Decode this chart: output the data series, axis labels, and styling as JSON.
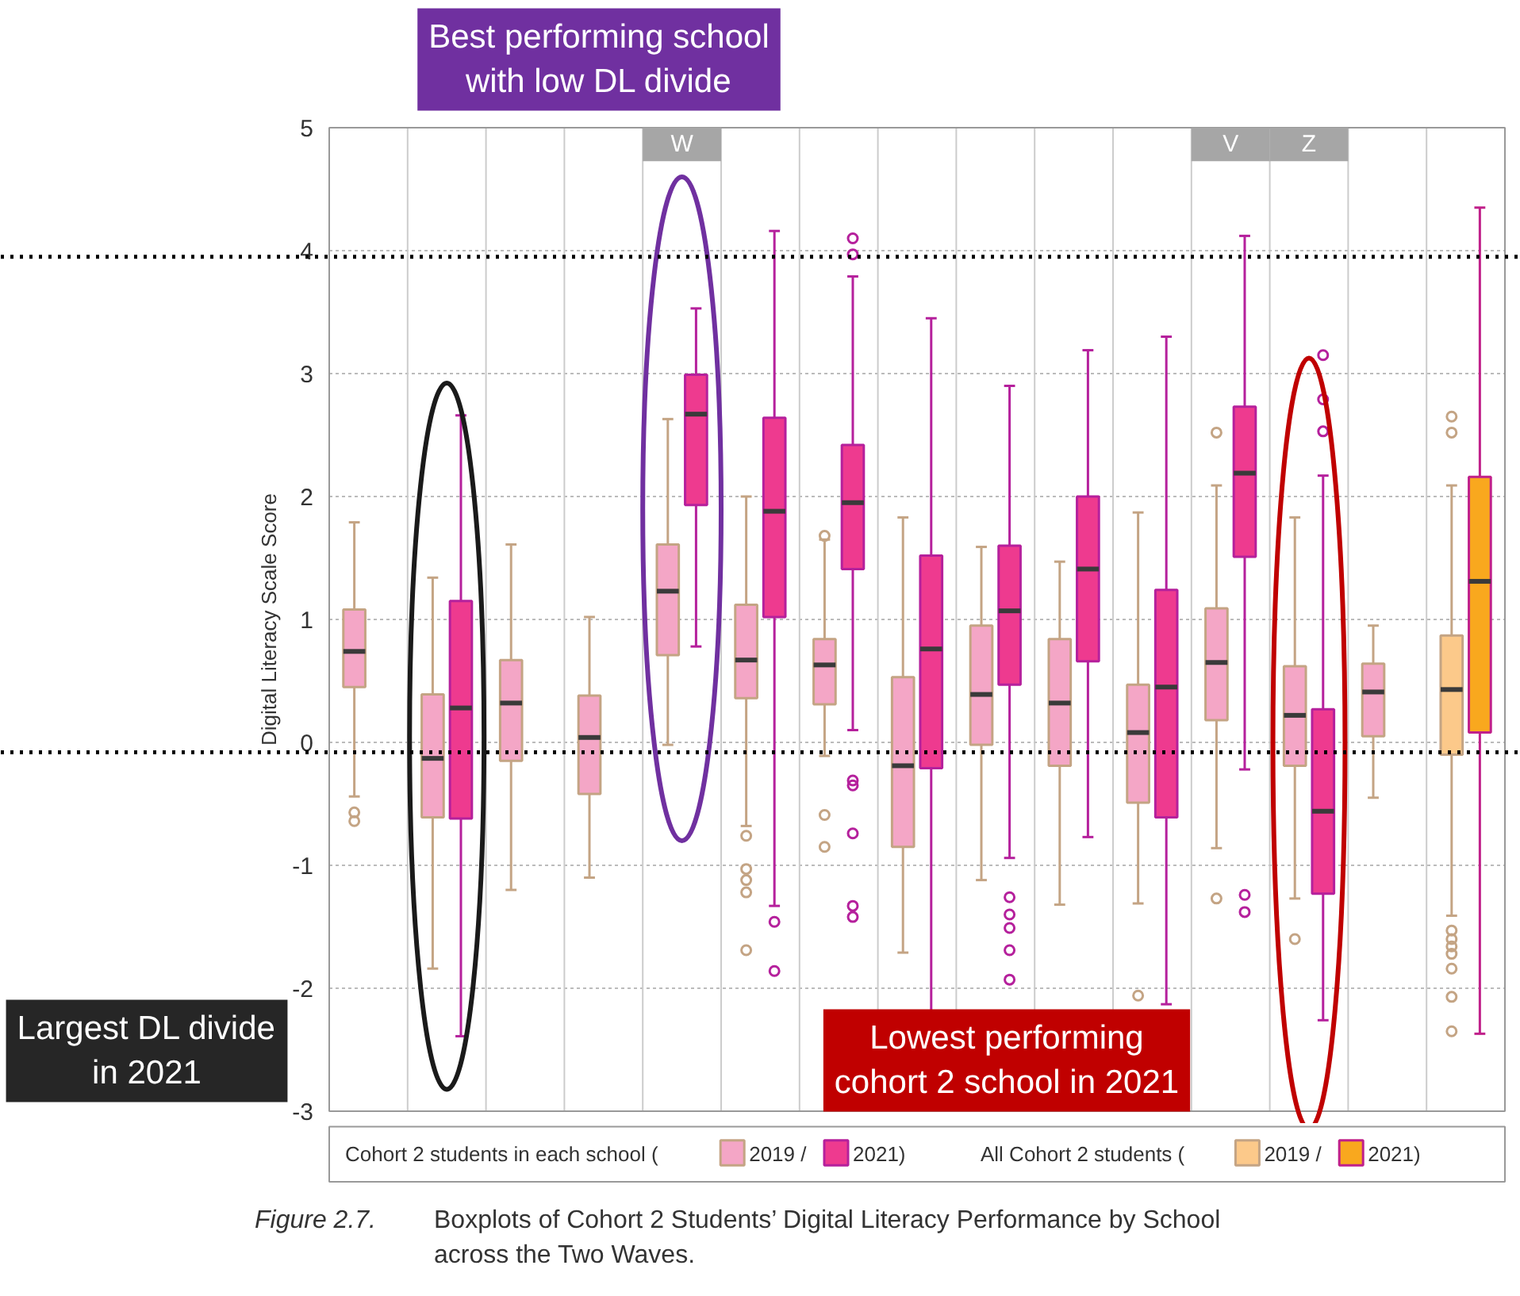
{
  "chart_data": {
    "type": "box",
    "ylabel": "Digital Literacy Scale Score",
    "categories": [
      null,
      null,
      null,
      null,
      "W",
      null,
      null,
      null,
      null,
      null,
      null,
      "V",
      "Z",
      null,
      null
    ],
    "ylim": [
      -3,
      5
    ],
    "yticks": [
      -3,
      -2,
      -1,
      0,
      1,
      2,
      3,
      4,
      5
    ],
    "grid": true,
    "legend": "bottom",
    "series": [
      {
        "name": "2019 /",
        "color": "#f4a6c6",
        "boxes": [
          {
            "low": -0.44,
            "q1": 0.45,
            "median": 0.74,
            "q3": 1.08,
            "high": 1.79,
            "outliers": [
              -0.57,
              -0.64
            ]
          },
          {
            "low": -1.84,
            "q1": -0.61,
            "median": -0.13,
            "q3": 0.39,
            "high": 1.34
          },
          {
            "low": -1.2,
            "q1": -0.15,
            "median": 0.32,
            "q3": 0.67,
            "high": 1.61
          },
          {
            "low": -1.1,
            "q1": -0.42,
            "median": 0.04,
            "q3": 0.38,
            "high": 1.02
          },
          {
            "low": -0.02,
            "q1": 0.71,
            "median": 1.23,
            "q3": 1.61,
            "high": 2.63
          },
          {
            "low": -0.68,
            "q1": 0.36,
            "median": 0.67,
            "q3": 1.12,
            "high": 2.0,
            "outliers": [
              -0.76,
              -1.03,
              -1.12,
              -1.22,
              -1.69
            ]
          },
          {
            "low": -0.11,
            "q1": 0.31,
            "median": 0.63,
            "q3": 0.84,
            "high": 1.65,
            "outliers": [
              1.68,
              -0.59,
              -0.85
            ]
          },
          {
            "low": -1.71,
            "q1": -0.85,
            "median": -0.19,
            "q3": 0.53,
            "high": 1.83
          },
          {
            "low": -1.12,
            "q1": -0.02,
            "median": 0.39,
            "q3": 0.95,
            "high": 1.59
          },
          {
            "low": -1.32,
            "q1": -0.19,
            "median": 0.32,
            "q3": 0.84,
            "high": 1.47
          },
          {
            "low": -1.31,
            "q1": -0.49,
            "median": 0.08,
            "q3": 0.47,
            "high": 1.87,
            "outliers": [
              -2.06
            ]
          },
          {
            "low": -0.86,
            "q1": 0.18,
            "median": 0.65,
            "q3": 1.09,
            "high": 2.09,
            "outliers": [
              2.52,
              -1.27
            ]
          },
          {
            "low": -1.27,
            "q1": -0.19,
            "median": 0.22,
            "q3": 0.62,
            "high": 1.83,
            "outliers": [
              -1.6
            ]
          },
          {
            "low": -0.45,
            "q1": 0.05,
            "median": 0.41,
            "q3": 0.64,
            "high": 0.95
          },
          null
        ]
      },
      {
        "name": "2021)",
        "color": "#ee3a8f",
        "boxes": [
          null,
          {
            "low": -2.39,
            "q1": -0.62,
            "median": 0.28,
            "q3": 1.15,
            "high": 2.66
          },
          null,
          null,
          {
            "low": 0.78,
            "q1": 1.93,
            "median": 2.67,
            "q3": 2.99,
            "high": 3.53
          },
          {
            "low": -1.33,
            "q1": 1.02,
            "median": 1.88,
            "q3": 2.64,
            "high": 4.16,
            "outliers": [
              -1.46,
              -1.86
            ]
          },
          {
            "low": 0.1,
            "q1": 1.41,
            "median": 1.95,
            "q3": 2.42,
            "high": 3.79,
            "outliers": [
              4.1,
              3.97,
              -0.31,
              -0.35,
              -0.74,
              -1.33,
              -1.42
            ]
          },
          {
            "low": -2.6,
            "q1": -0.21,
            "median": 0.76,
            "q3": 1.52,
            "high": 3.45
          },
          {
            "low": -0.94,
            "q1": 0.47,
            "median": 1.07,
            "q3": 1.6,
            "high": 2.9,
            "outliers": [
              -1.26,
              -1.4,
              -1.51,
              -1.69,
              -1.93
            ]
          },
          {
            "low": -0.77,
            "q1": 0.66,
            "median": 1.41,
            "q3": 2.0,
            "high": 3.19
          },
          {
            "low": -2.13,
            "q1": -0.61,
            "median": 0.45,
            "q3": 1.24,
            "high": 3.3
          },
          {
            "low": -0.22,
            "q1": 1.51,
            "median": 2.19,
            "q3": 2.73,
            "high": 4.12,
            "outliers": [
              -1.24,
              -1.38
            ]
          },
          {
            "low": -2.26,
            "q1": -1.23,
            "median": -0.56,
            "q3": 0.27,
            "high": 2.17,
            "outliers": [
              3.15,
              2.79,
              2.53
            ]
          },
          null,
          null
        ]
      },
      {
        "name": "2019 /",
        "color": "#fcc98a",
        "boxes": [
          null,
          null,
          null,
          null,
          null,
          null,
          null,
          null,
          null,
          null,
          null,
          null,
          null,
          null,
          {
            "low": -1.41,
            "q1": -0.1,
            "median": 0.43,
            "q3": 0.87,
            "high": 2.09,
            "outliers": [
              2.65,
              2.52,
              -1.53,
              -1.6,
              -1.66,
              -1.72,
              -1.84,
              -2.07,
              -2.35
            ]
          }
        ]
      },
      {
        "name": "2021)",
        "color": "#f9a81e",
        "boxes": [
          null,
          null,
          null,
          null,
          null,
          null,
          null,
          null,
          null,
          null,
          null,
          null,
          null,
          null,
          {
            "low": -2.37,
            "q1": 0.08,
            "median": 1.31,
            "q3": 2.16,
            "high": 4.35
          }
        ]
      }
    ],
    "ref_lines": [
      {
        "axis": "y",
        "value": 3.95,
        "color": "#000000",
        "line_style": "dotted"
      },
      {
        "axis": "y",
        "value": -0.08,
        "color": "#000000",
        "line_style": "dotted"
      }
    ],
    "annotations": [
      "Cohort 2 students in each school (",
      "All Cohort 2 students (",
      "Best performing school with low DL divide",
      "Largest DL divide in 2021",
      "Lowest performing cohort 2 school in 2021",
      "Figure 2.7.",
      "Boxplots of Cohort 2 Students’ Digital Literacy Performance by School across the Two Waves."
    ]
  }
}
